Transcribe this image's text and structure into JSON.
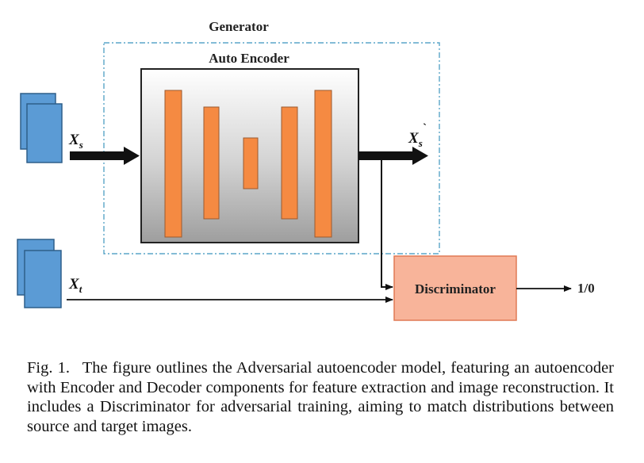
{
  "generator": {
    "label": "Generator"
  },
  "autoencoder": {
    "label": "Auto Encoder"
  },
  "discriminator": {
    "label": "Discriminator",
    "output_label": "1/0"
  },
  "inputs": {
    "source": {
      "symbol": "X",
      "subscript": "s"
    },
    "target": {
      "symbol": "X",
      "subscript": "t"
    }
  },
  "reconstruction": {
    "symbol": "X",
    "prime": "`",
    "subscript": "s"
  },
  "caption": {
    "figure_label": "Fig. 1.",
    "text": "The figure outlines the Adversarial autoencoder model, featuring an autoencoder with Encoder and Decoder components for feature extraction and image reconstruction. It includes a Discriminator for adversarial training, aiming to match distributions between source and target images."
  },
  "colors": {
    "layer_fill": "#f58a42",
    "image_fill": "#5b9bd5",
    "generator_border": "#5aa6c8",
    "discriminator_fill": "#f8b49a",
    "arrow": "#111111"
  }
}
